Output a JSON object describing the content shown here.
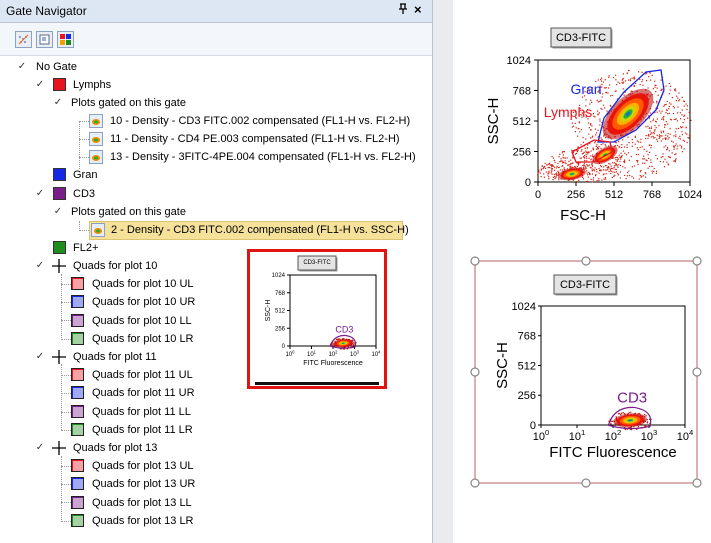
{
  "panel": {
    "title": "Gate Navigator",
    "pin_glyph": "⊥",
    "close_glyph": "×"
  },
  "toolbar": {
    "buttons": [
      "show-gates-icon",
      "layout-icon",
      "gate-colors-icon"
    ]
  },
  "tree": {
    "root": "No Gate",
    "lymphs": "Lymphs",
    "lymphs_sub": "Plots gated on this gate",
    "lymphs_plots": [
      "10 - Density - CD3 FITC.002 compensated (FL1-H vs. FL2-H)",
      "11 - Density - CD4 PE.003 compensated (FL1-H vs. FL2-H)",
      "13 - Density - 3FITC-4PE.004 compensated (FL1-H vs. FL2-H)"
    ],
    "gran": "Gran",
    "cd3": "CD3",
    "cd3_sub": "Plots gated on this gate",
    "cd3_plot": "2 - Density - CD3 FITC.002 compensated (FL1-H vs. SSC-H)",
    "fl2": "FL2+",
    "quad_groups": [
      {
        "label": "Quads for plot 10",
        "items": [
          "Quads for plot 10 UL",
          "Quads for plot 10 UR",
          "Quads for plot 10 LL",
          "Quads for plot 10 LR"
        ]
      },
      {
        "label": "Quads for plot 11",
        "items": [
          "Quads for plot 11 UL",
          "Quads for plot 11 UR",
          "Quads for plot 11 LL",
          "Quads for plot 11 LR"
        ]
      },
      {
        "label": "Quads for plot 13",
        "items": [
          "Quads for plot 13 UL",
          "Quads for plot 13 UR",
          "Quads for plot 13 LL",
          "Quads for plot 13 LR"
        ]
      }
    ]
  },
  "colors": {
    "red": "#e8141e",
    "blue": "#1428e6",
    "purple": "#7a1e8c",
    "green": "#1e8c1e",
    "highlight": "#e11414"
  },
  "chart_data": [
    {
      "type": "scatter",
      "title": "CD3-FITC",
      "xlabel": "FSC-H",
      "ylabel": "SSC-H",
      "x_ticks": [
        "0",
        "256",
        "512",
        "768",
        "1024"
      ],
      "y_ticks": [
        "0",
        "256",
        "512",
        "768",
        "1024"
      ],
      "xlim": [
        0,
        1024
      ],
      "ylim": [
        0,
        1024
      ],
      "gates": [
        {
          "name": "Gran",
          "color": "#1428e6"
        },
        {
          "name": "Lymphs",
          "color": "#e8141e"
        }
      ]
    },
    {
      "type": "scatter",
      "title": "CD3-FITC",
      "xlabel": "FITC Fluorescence",
      "ylabel": "SSC-H",
      "x_ticks": [
        "10^0",
        "10^1",
        "10^2",
        "10^3",
        "10^4"
      ],
      "y_ticks": [
        "0",
        "256",
        "512",
        "768",
        "1024"
      ],
      "xscale": "log",
      "xlim": [
        1,
        10000
      ],
      "ylim": [
        0,
        1024
      ],
      "gates": [
        {
          "name": "CD3",
          "color": "#7a1e8c"
        }
      ]
    },
    {
      "type": "scatter",
      "title": "CD3-FITC",
      "xlabel": "FITC Fluorescence",
      "ylabel": "SSC-H",
      "x_ticks": [
        "10^0",
        "10^1",
        "10^2",
        "10^3",
        "10^4"
      ],
      "y_ticks": [
        "0",
        "256",
        "512",
        "768",
        "1024"
      ],
      "gates": [
        {
          "name": "CD3",
          "color": "#7a1e8c"
        }
      ]
    }
  ]
}
